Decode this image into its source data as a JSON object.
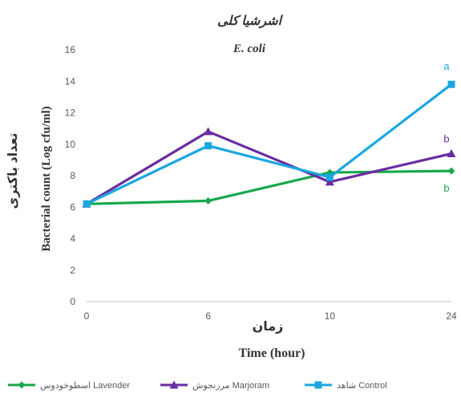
{
  "chart_data": {
    "type": "line",
    "title_fa": "اشرشیا کلی",
    "title": "E. coli",
    "ylabel": "Bacterial count (Log cfu/ml)",
    "ylabel_fa": "تعداد باکتری",
    "xlabel": "Time (hour)",
    "xlabel_fa": "زمان",
    "categories": [
      "0",
      "6",
      "10",
      "24"
    ],
    "y_ticks": [
      "0",
      "2",
      "4",
      "6",
      "8",
      "10",
      "12",
      "14",
      "16"
    ],
    "ylim": [
      0,
      16
    ],
    "grid": false,
    "legend_position": "bottom",
    "series": [
      {
        "name": "اسطوخودوس Lavender",
        "values": [
          6.2,
          6.4,
          8.2,
          8.3
        ],
        "color": "#17a84b",
        "marker": "diamond",
        "annotation": "b"
      },
      {
        "name": "مرزنجوش Marjoram",
        "values": [
          6.2,
          10.8,
          7.6,
          9.4
        ],
        "color": "#6a2ca0",
        "marker": "triangle",
        "annotation": "b"
      },
      {
        "name": "شاهد Control",
        "values": [
          6.2,
          9.9,
          7.9,
          13.8
        ],
        "color": "#1aa7e0",
        "marker": "square",
        "annotation": "a"
      }
    ]
  }
}
